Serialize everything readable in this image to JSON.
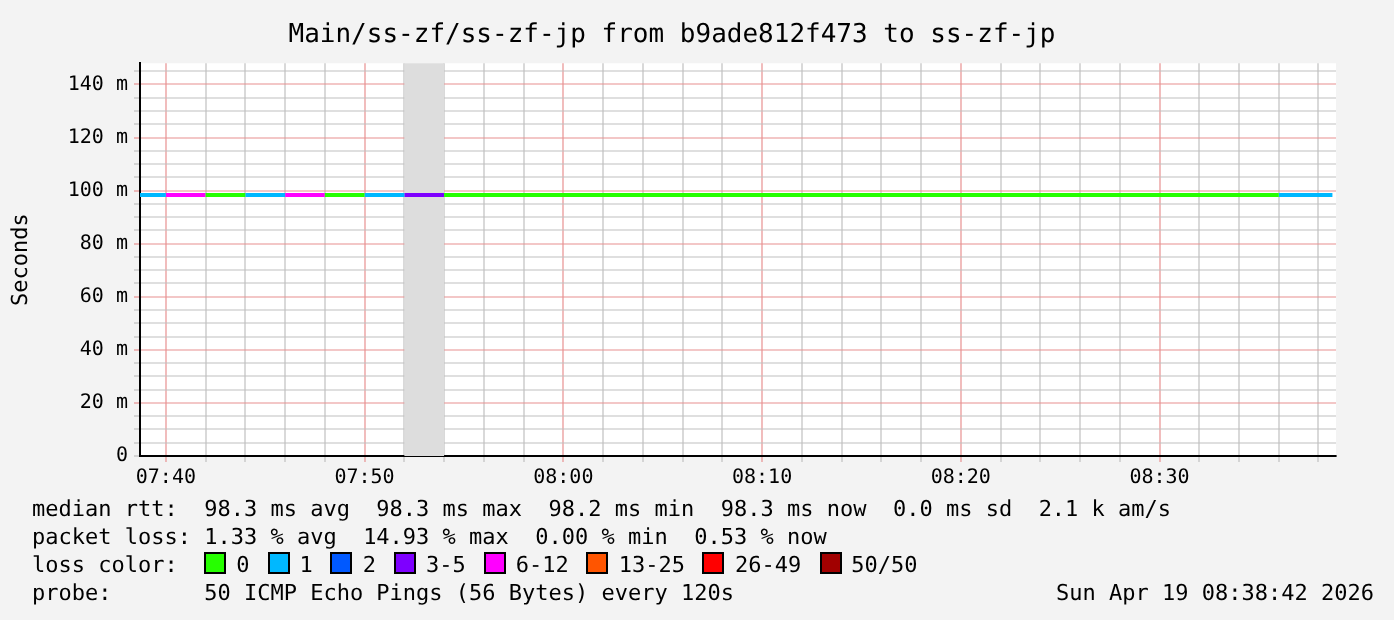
{
  "chart_data": {
    "type": "line",
    "title": "Main/ss-zf/ss-zf-jp from b9ade812f473 to ss-zf-jp",
    "ylabel": "Seconds",
    "legend_title": "loss color:",
    "x": [
      7.645,
      7.6667,
      7.7,
      7.7333,
      7.7667,
      7.8,
      7.8333,
      7.8667,
      7.9,
      8.6,
      8.645
    ],
    "series": [
      {
        "name": "0",
        "color": "#26ff00",
        "values": [
          null,
          null,
          98.3,
          98.3,
          null,
          98.3,
          98.3,
          null,
          98.3,
          98.3,
          null
        ]
      },
      {
        "name": "1",
        "color": "#00b8ff",
        "values": [
          98.3,
          98.3,
          null,
          98.3,
          98.3,
          null,
          98.3,
          98.3,
          null,
          98.3,
          98.3
        ]
      },
      {
        "name": "2",
        "color": "#0059ff",
        "values": [
          null,
          null,
          null,
          null,
          null,
          null,
          null,
          null,
          null,
          null,
          null
        ]
      },
      {
        "name": "3-5",
        "color": "#7e00ff",
        "values": [
          null,
          null,
          null,
          null,
          null,
          null,
          null,
          98.3,
          98.3,
          null,
          null
        ]
      },
      {
        "name": "6-12",
        "color": "#ff00ff",
        "values": [
          null,
          98.3,
          98.3,
          null,
          98.3,
          98.3,
          null,
          null,
          null,
          null,
          null
        ]
      },
      {
        "name": "13-25",
        "color": "#ff5500",
        "values": [
          null,
          null,
          null,
          null,
          null,
          null,
          null,
          null,
          null,
          null,
          null
        ]
      },
      {
        "name": "26-49",
        "color": "#ff0000",
        "values": [
          null,
          null,
          null,
          null,
          null,
          null,
          null,
          null,
          null,
          null,
          null
        ]
      },
      {
        "name": "50/50",
        "color": "#a10000",
        "values": [
          null,
          null,
          null,
          null,
          null,
          null,
          null,
          null,
          null,
          null,
          null
        ]
      }
    ],
    "xlim": [
      7.645,
      8.648
    ],
    "xticks": [
      {
        "value": 7.6667,
        "label": "07:40"
      },
      {
        "value": 7.7,
        "label": null
      },
      {
        "value": 7.7333,
        "label": null
      },
      {
        "value": 7.7667,
        "label": null
      },
      {
        "value": 7.8,
        "label": null
      },
      {
        "value": 7.8333,
        "label": "07:50"
      },
      {
        "value": 7.8667,
        "label": null
      },
      {
        "value": 7.9,
        "label": null
      },
      {
        "value": 7.9333,
        "label": null
      },
      {
        "value": 7.9667,
        "label": null
      },
      {
        "value": 8,
        "label": "08:00"
      },
      {
        "value": 8.0333,
        "label": null
      },
      {
        "value": 8.0667,
        "label": null
      },
      {
        "value": 8.1,
        "label": null
      },
      {
        "value": 8.1333,
        "label": null
      },
      {
        "value": 8.1667,
        "label": "08:10"
      },
      {
        "value": 8.2,
        "label": null
      },
      {
        "value": 8.2333,
        "label": null
      },
      {
        "value": 8.2667,
        "label": null
      },
      {
        "value": 8.3,
        "label": null
      },
      {
        "value": 8.3333,
        "label": "08:20"
      },
      {
        "value": 8.3667,
        "label": null
      },
      {
        "value": 8.4,
        "label": null
      },
      {
        "value": 8.4333,
        "label": null
      },
      {
        "value": 8.4667,
        "label": null
      },
      {
        "value": 8.5,
        "label": "08:30"
      },
      {
        "value": 8.5333,
        "label": null
      },
      {
        "value": 8.5667,
        "label": null
      },
      {
        "value": 8.6,
        "label": null
      },
      {
        "value": 8.6333,
        "label": null
      }
    ],
    "ylim": [
      0,
      148
    ],
    "yticks": [
      0,
      {
        "value": 5,
        "label": null
      },
      {
        "value": 10,
        "label": null
      },
      {
        "value": 15,
        "label": null
      },
      {
        "value": 20,
        "label": "20 m"
      },
      {
        "value": 25,
        "label": null
      },
      {
        "value": 30,
        "label": null
      },
      {
        "value": 35,
        "label": null
      },
      {
        "value": 40,
        "label": "40 m"
      },
      {
        "value": 45,
        "label": null
      },
      {
        "value": 50,
        "label": null
      },
      {
        "value": 55,
        "label": null
      },
      {
        "value": 60,
        "label": "60 m"
      },
      {
        "value": 65,
        "label": null
      },
      {
        "value": 70,
        "label": null
      },
      {
        "value": 75,
        "label": null
      },
      {
        "value": 80,
        "label": "80 m"
      },
      {
        "value": 85,
        "label": null
      },
      {
        "value": 90,
        "label": null
      },
      {
        "value": 95,
        "label": null
      },
      {
        "value": 100,
        "label": "100 m"
      },
      {
        "value": 105,
        "label": null
      },
      {
        "value": 110,
        "label": null
      },
      {
        "value": 115,
        "label": null
      },
      {
        "value": 120,
        "label": "120 m"
      },
      {
        "value": 125,
        "label": null
      },
      {
        "value": 130,
        "label": null
      },
      {
        "value": 135,
        "label": null
      },
      {
        "value": 140,
        "label": "140 m"
      },
      {
        "value": 145,
        "label": null
      }
    ],
    "bands": [
      {
        "axis": "x",
        "from": 7.8667,
        "to": 7.9,
        "color": "#dddddd"
      }
    ],
    "grid": true,
    "legend": "bottom",
    "marker": "none",
    "line_style": "solid",
    "annotations": [
      "median rtt:  98.3 ms avg  98.3 ms max  98.2 ms min  98.3 ms now  0.0 ms sd  2.1 k am/s",
      "packet loss: 1.33 % avg  14.93 % max  0.00 % min  0.53 % now",
      "probe:       50 ICMP Echo Pings (56 Bytes) every 120s",
      "Sun Apr 19 08:38:42 2026"
    ]
  }
}
